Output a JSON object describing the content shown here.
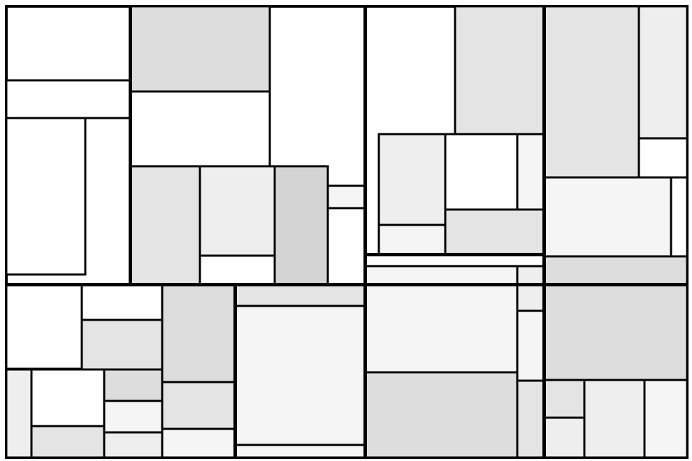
{
  "diagram": {
    "kind": "treemap",
    "text_labels": [],
    "colors": {
      "border": "#000000",
      "background": "#ffffff",
      "fills": [
        "#ffffff",
        "#f5f5f5",
        "#eeeeee",
        "#e4e4e4",
        "#dddddd",
        "#d4d4d4",
        "#cccccc"
      ]
    }
  }
}
